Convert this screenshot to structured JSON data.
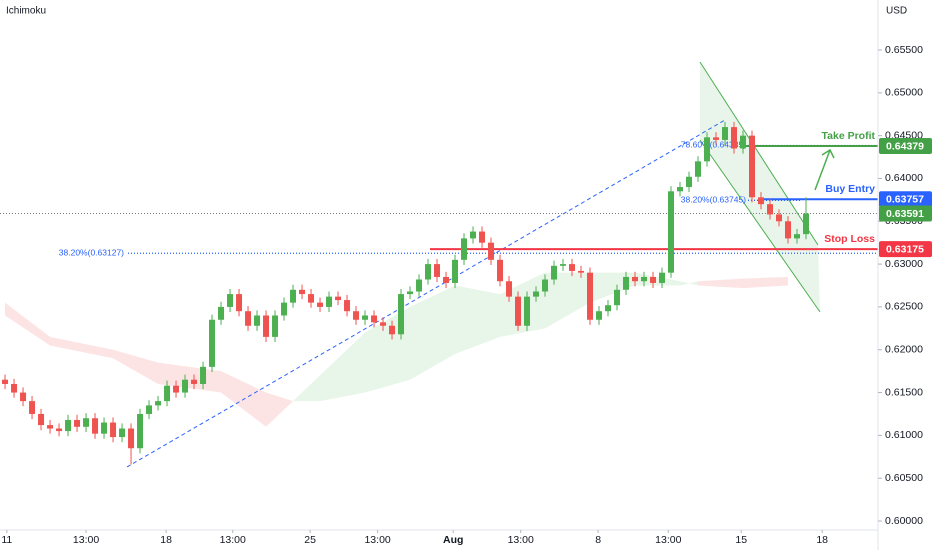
{
  "header": {
    "indicator": "Ichimoku",
    "currency": "USD"
  },
  "chart_data": {
    "type": "candlestick",
    "xlim": [
      -0.56,
      97
    ],
    "xticks": [
      {
        "value": 0.2,
        "label": "11"
      },
      {
        "value": 9,
        "label": "13:00"
      },
      {
        "value": 17.9,
        "label": "18"
      },
      {
        "value": 25.3,
        "label": "13:00"
      },
      {
        "value": 33.9,
        "label": "25"
      },
      {
        "value": 41.4,
        "label": "13:00"
      },
      {
        "value": 49.8,
        "label": "Aug"
      },
      {
        "value": 57.3,
        "label": "13:00"
      },
      {
        "value": 65.9,
        "label": "8"
      },
      {
        "value": 73.7,
        "label": "13:00"
      },
      {
        "value": 81.8,
        "label": "15"
      },
      {
        "value": 90.8,
        "label": "18"
      }
    ],
    "ylim": [
      0.59895,
      0.66084
    ],
    "yticks": [
      {
        "value": 0.6,
        "label": "0.60000"
      },
      {
        "value": 0.605,
        "label": "0.60500"
      },
      {
        "value": 0.61,
        "label": "0.61000"
      },
      {
        "value": 0.615,
        "label": "0.61500"
      },
      {
        "value": 0.62,
        "label": "0.62000"
      },
      {
        "value": 0.625,
        "label": "0.62500"
      },
      {
        "value": 0.63,
        "label": "0.63000"
      },
      {
        "value": 0.635,
        "label": "0.63500"
      },
      {
        "value": 0.64,
        "label": "0.64000"
      },
      {
        "value": 0.645,
        "label": "0.64500"
      },
      {
        "value": 0.65,
        "label": "0.65000"
      },
      {
        "value": 0.655,
        "label": "0.65500"
      }
    ],
    "up_color": "#4caf50",
    "down_color": "#ef5350",
    "open": [
      0.6165,
      0.616,
      0.615,
      0.614,
      0.6125,
      0.6112,
      0.6108,
      0.6105,
      0.6118,
      0.611,
      0.612,
      0.6102,
      0.6115,
      0.6098,
      0.6108,
      0.6085,
      0.6125,
      0.6135,
      0.614,
      0.6158,
      0.615,
      0.6165,
      0.616,
      0.618,
      0.6235,
      0.625,
      0.6265,
      0.6245,
      0.6228,
      0.624,
      0.6215,
      0.624,
      0.6255,
      0.627,
      0.6265,
      0.6255,
      0.625,
      0.6262,
      0.6258,
      0.6245,
      0.6235,
      0.624,
      0.6232,
      0.6228,
      0.6218,
      0.6265,
      0.6268,
      0.6282,
      0.63,
      0.6285,
      0.6278,
      0.6305,
      0.633,
      0.6338,
      0.6325,
      0.6305,
      0.628,
      0.6262,
      0.6228,
      0.6262,
      0.6268,
      0.6282,
      0.6298,
      0.63,
      0.6292,
      0.629,
      0.6235,
      0.6245,
      0.6252,
      0.627,
      0.6285,
      0.628,
      0.6285,
      0.6278,
      0.629,
      0.6385,
      0.639,
      0.6402,
      0.642,
      0.6448,
      0.6445,
      0.646,
      0.6435,
      0.645,
      0.6378,
      0.637,
      0.6358,
      0.635,
      0.633,
      0.6335
    ],
    "high": [
      0.6171,
      0.6166,
      0.6156,
      0.6146,
      0.6131,
      0.6118,
      0.6114,
      0.6124,
      0.6124,
      0.6126,
      0.6126,
      0.6121,
      0.6121,
      0.6114,
      0.6114,
      0.6131,
      0.6141,
      0.6146,
      0.6164,
      0.6164,
      0.6171,
      0.6171,
      0.6186,
      0.6241,
      0.6256,
      0.6271,
      0.6271,
      0.6251,
      0.6246,
      0.6246,
      0.6246,
      0.6261,
      0.6276,
      0.6276,
      0.6271,
      0.6261,
      0.6268,
      0.6268,
      0.6264,
      0.6251,
      0.6246,
      0.6246,
      0.6238,
      0.6234,
      0.6271,
      0.6274,
      0.6288,
      0.6306,
      0.6306,
      0.6291,
      0.6311,
      0.6336,
      0.6344,
      0.6344,
      0.6331,
      0.6311,
      0.6286,
      0.6268,
      0.6268,
      0.6274,
      0.6288,
      0.6304,
      0.6306,
      0.6306,
      0.6298,
      0.6296,
      0.6251,
      0.6258,
      0.6276,
      0.6291,
      0.6291,
      0.6291,
      0.6291,
      0.6296,
      0.6391,
      0.6396,
      0.6408,
      0.6426,
      0.6454,
      0.6454,
      0.6466,
      0.6466,
      0.6456,
      0.6456,
      0.6384,
      0.6376,
      0.6364,
      0.6356,
      0.6341,
      0.6378
    ],
    "low": [
      0.6154,
      0.6144,
      0.6134,
      0.6119,
      0.6106,
      0.6102,
      0.6099,
      0.6099,
      0.6104,
      0.6104,
      0.6096,
      0.6096,
      0.6092,
      0.6092,
      0.6066,
      0.6079,
      0.6119,
      0.6129,
      0.6134,
      0.6144,
      0.6144,
      0.6154,
      0.6154,
      0.6174,
      0.6229,
      0.6244,
      0.6239,
      0.6222,
      0.6222,
      0.6209,
      0.6209,
      0.6234,
      0.6249,
      0.6259,
      0.6249,
      0.6244,
      0.6244,
      0.6252,
      0.6239,
      0.6229,
      0.6229,
      0.6226,
      0.6222,
      0.6212,
      0.6212,
      0.6259,
      0.6262,
      0.6276,
      0.6279,
      0.6272,
      0.6272,
      0.6299,
      0.6324,
      0.6319,
      0.6299,
      0.6274,
      0.6256,
      0.6222,
      0.6222,
      0.6256,
      0.6262,
      0.6276,
      0.6292,
      0.6286,
      0.6284,
      0.6229,
      0.6229,
      0.6239,
      0.6246,
      0.6264,
      0.6274,
      0.6274,
      0.6272,
      0.6272,
      0.6284,
      0.6379,
      0.6384,
      0.6396,
      0.6414,
      0.6439,
      0.6439,
      0.6429,
      0.6429,
      0.6372,
      0.6364,
      0.6352,
      0.6344,
      0.6324,
      0.6324,
      0.6329
    ],
    "close": [
      0.616,
      0.615,
      0.614,
      0.6125,
      0.6112,
      0.6108,
      0.6105,
      0.6118,
      0.611,
      0.612,
      0.6102,
      0.6115,
      0.6098,
      0.6108,
      0.6085,
      0.6125,
      0.6135,
      0.614,
      0.6158,
      0.615,
      0.6165,
      0.616,
      0.618,
      0.6235,
      0.625,
      0.6265,
      0.6245,
      0.6228,
      0.624,
      0.6215,
      0.624,
      0.6255,
      0.627,
      0.6265,
      0.6255,
      0.625,
      0.6262,
      0.6258,
      0.6245,
      0.6235,
      0.624,
      0.6232,
      0.6228,
      0.6218,
      0.6265,
      0.6268,
      0.6282,
      0.63,
      0.6285,
      0.6278,
      0.6305,
      0.633,
      0.6338,
      0.6325,
      0.6305,
      0.628,
      0.6262,
      0.6228,
      0.6262,
      0.6268,
      0.6282,
      0.6298,
      0.63,
      0.6292,
      0.629,
      0.6235,
      0.6245,
      0.6252,
      0.627,
      0.6285,
      0.628,
      0.6285,
      0.6278,
      0.629,
      0.6385,
      0.639,
      0.6402,
      0.642,
      0.6448,
      0.6445,
      0.646,
      0.6435,
      0.645,
      0.6378,
      0.637,
      0.6358,
      0.635,
      0.633,
      0.6335,
      0.6359
    ],
    "cloud": {
      "x": [
        0,
        5,
        12,
        17,
        24,
        29,
        32,
        35,
        40,
        45,
        50,
        55,
        60,
        65,
        70,
        75,
        77,
        82,
        87
      ],
      "span_a": [
        0.624,
        0.6205,
        0.619,
        0.616,
        0.615,
        0.611,
        0.614,
        0.617,
        0.622,
        0.625,
        0.6275,
        0.6265,
        0.629,
        0.629,
        0.629,
        0.628,
        0.6275,
        0.6272,
        0.6275
      ],
      "span_b": [
        0.6255,
        0.6215,
        0.62,
        0.6185,
        0.6175,
        0.615,
        0.614,
        0.614,
        0.615,
        0.6165,
        0.6195,
        0.6215,
        0.6225,
        0.6255,
        0.6275,
        0.6275,
        0.628,
        0.6283,
        0.6285
      ],
      "bull_color": "#e8f5e9",
      "bear_color": "#fde4e4"
    },
    "levels": [
      {
        "label": "Take Profit",
        "value": 0.64379,
        "color": "#43a047"
      },
      {
        "label": "Buy Entry",
        "value": 0.63757,
        "color": "#2962ff"
      },
      {
        "label": "Stop Loss",
        "value": 0.63175,
        "color": "#f23645"
      }
    ],
    "fib_levels": [
      {
        "label": "78.60%(0.64385)",
        "value": 0.64385
      },
      {
        "label": "38.20%(0.63745)",
        "value": 0.63745
      },
      {
        "label": "38.20%(0.63127)",
        "value": 0.63127
      }
    ],
    "fib_color": "#2962ff",
    "last_price": 0.63591,
    "last_price_color": "#43a047"
  }
}
